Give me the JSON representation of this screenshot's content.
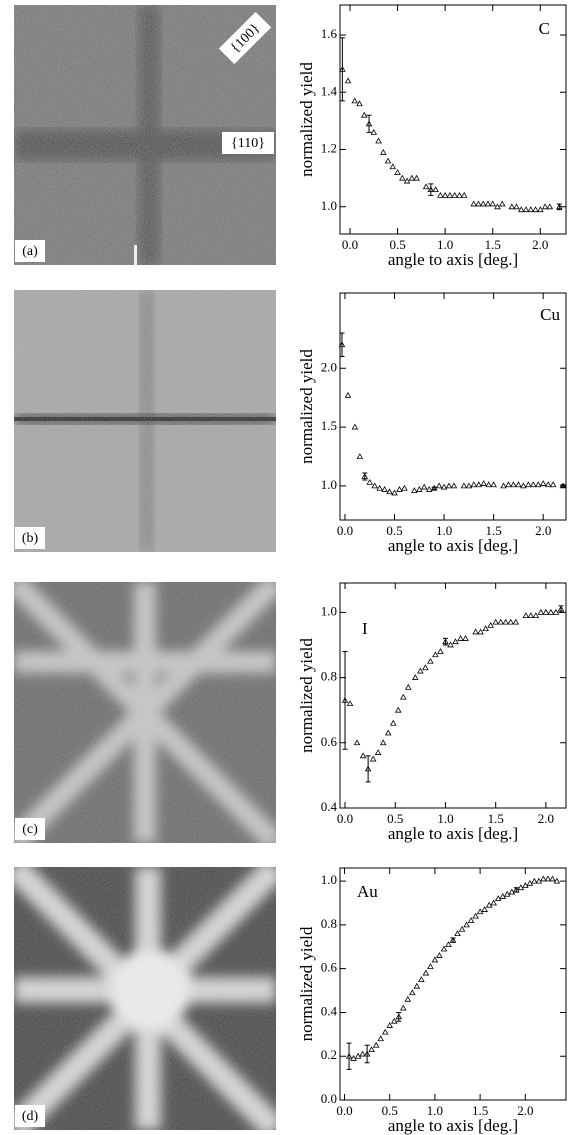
{
  "images": [
    {
      "label": "(a)",
      "annotations": [
        "{100}",
        "{110}"
      ]
    },
    {
      "label": "(b)"
    },
    {
      "label": "(c)"
    },
    {
      "label": "(d)"
    }
  ],
  "chart_data": [
    {
      "type": "scatter",
      "annotation": "C",
      "xlabel": "angle to axis [deg.]",
      "ylabel": "normalized yield",
      "x": [
        -0.08,
        -0.02,
        0.05,
        0.1,
        0.15,
        0.2,
        0.25,
        0.3,
        0.35,
        0.4,
        0.45,
        0.5,
        0.55,
        0.6,
        0.65,
        0.7,
        0.8,
        0.85,
        0.9,
        0.95,
        1.0,
        1.05,
        1.1,
        1.15,
        1.2,
        1.3,
        1.35,
        1.4,
        1.45,
        1.5,
        1.55,
        1.6,
        1.7,
        1.75,
        1.8,
        1.85,
        1.9,
        1.95,
        2.0,
        2.05,
        2.1,
        2.2
      ],
      "values": [
        1.48,
        1.44,
        1.37,
        1.36,
        1.32,
        1.29,
        1.26,
        1.23,
        1.19,
        1.16,
        1.14,
        1.12,
        1.1,
        1.09,
        1.1,
        1.1,
        1.07,
        1.06,
        1.06,
        1.04,
        1.04,
        1.04,
        1.04,
        1.04,
        1.04,
        1.01,
        1.01,
        1.01,
        1.01,
        1.01,
        1.0,
        1.01,
        1.0,
        1.0,
        0.99,
        0.99,
        0.99,
        0.99,
        0.99,
        1.0,
        1.0,
        1.0
      ],
      "errorbars": {
        "x": [
          -0.08,
          0.2,
          0.85,
          2.2
        ],
        "values": [
          1.48,
          1.29,
          1.06,
          1.0
        ],
        "errors": [
          0.11,
          0.03,
          0.02,
          0.01
        ]
      },
      "xlim": [
        -0.105,
        2.27
      ],
      "xticks": [
        {
          "value": 0,
          "label": "0.0"
        },
        0.5,
        {
          "value": 1,
          "label": "1.0"
        },
        1.5,
        {
          "value": 2,
          "label": "2.0"
        }
      ],
      "ylim": [
        0.905,
        1.705
      ],
      "yticks": [
        {
          "value": 1,
          "label": "1.0"
        },
        1.2,
        1.4,
        1.6
      ],
      "color": "#000000"
    },
    {
      "type": "scatter",
      "annotation": "Cu",
      "xlabel": "angle to axis [deg.]",
      "ylabel": "normalized yield",
      "x": [
        -0.03,
        0.03,
        0.1,
        0.15,
        0.2,
        0.25,
        0.3,
        0.35,
        0.4,
        0.45,
        0.5,
        0.55,
        0.6,
        0.7,
        0.75,
        0.8,
        0.85,
        0.9,
        0.95,
        1.0,
        1.05,
        1.1,
        1.2,
        1.25,
        1.3,
        1.35,
        1.4,
        1.45,
        1.5,
        1.6,
        1.65,
        1.7,
        1.75,
        1.8,
        1.85,
        1.9,
        1.95,
        2.0,
        2.05,
        2.1,
        2.2
      ],
      "values": [
        2.2,
        1.77,
        1.5,
        1.25,
        1.08,
        1.03,
        1.0,
        0.98,
        0.97,
        0.95,
        0.94,
        0.97,
        0.98,
        0.96,
        0.97,
        0.99,
        0.97,
        0.98,
        1.0,
        0.99,
        1.0,
        1.0,
        1.0,
        1.0,
        1.01,
        1.01,
        1.02,
        1.01,
        1.01,
        1.0,
        1.01,
        1.01,
        1.01,
        1.0,
        1.01,
        1.01,
        1.01,
        1.02,
        1.01,
        1.01,
        1.0
      ],
      "errorbars": {
        "x": [
          -0.03,
          0.2,
          0.9,
          2.2
        ],
        "values": [
          2.2,
          1.08,
          0.98,
          1.0
        ],
        "errors": [
          0.1,
          0.03,
          0.01,
          0.01
        ]
      },
      "xlim": [
        -0.05,
        2.23
      ],
      "xticks": [
        {
          "value": 0,
          "label": "0.0"
        },
        0.5,
        {
          "value": 1,
          "label": "1.0"
        },
        1.5,
        {
          "value": 2,
          "label": "2.0"
        }
      ],
      "ylim": [
        0.71,
        2.64
      ],
      "yticks": [
        {
          "value": 1,
          "label": "1.0"
        },
        1.5,
        {
          "value": 2,
          "label": "2.0"
        }
      ],
      "color": "#000000"
    },
    {
      "type": "scatter",
      "annotation": "I",
      "xlabel": "angle to axis [deg.]",
      "ylabel": "normalized yield",
      "x": [
        0.0,
        0.05,
        0.12,
        0.18,
        0.23,
        0.28,
        0.33,
        0.38,
        0.43,
        0.48,
        0.53,
        0.58,
        0.63,
        0.7,
        0.75,
        0.8,
        0.85,
        0.9,
        0.95,
        1.0,
        1.05,
        1.1,
        1.15,
        1.2,
        1.3,
        1.35,
        1.4,
        1.45,
        1.5,
        1.55,
        1.6,
        1.65,
        1.7,
        1.8,
        1.85,
        1.9,
        1.95,
        2.0,
        2.05,
        2.1,
        2.15
      ],
      "values": [
        0.73,
        0.72,
        0.6,
        0.56,
        0.52,
        0.55,
        0.57,
        0.6,
        0.63,
        0.66,
        0.7,
        0.74,
        0.77,
        0.8,
        0.82,
        0.83,
        0.85,
        0.87,
        0.88,
        0.91,
        0.9,
        0.91,
        0.92,
        0.92,
        0.94,
        0.94,
        0.95,
        0.96,
        0.97,
        0.97,
        0.97,
        0.97,
        0.97,
        0.99,
        0.99,
        0.99,
        1.0,
        1.0,
        1.0,
        1.0,
        1.01
      ],
      "errorbars": {
        "x": [
          0.0,
          0.23,
          1.0,
          2.15
        ],
        "values": [
          0.73,
          0.52,
          0.91,
          1.01
        ],
        "errors": [
          0.15,
          0.04,
          0.01,
          0.01
        ]
      },
      "xlim": [
        -0.05,
        2.2
      ],
      "xticks": [
        {
          "value": 0,
          "label": "0.0"
        },
        0.5,
        {
          "value": 1,
          "label": "1.0"
        },
        1.5,
        {
          "value": 2,
          "label": "2.0"
        }
      ],
      "ylim": [
        0.4,
        1.09
      ],
      "yticks": [
        0.4,
        0.6,
        0.8,
        {
          "value": 1,
          "label": "1.0"
        }
      ],
      "color": "#000000"
    },
    {
      "type": "scatter",
      "annotation": "Au",
      "xlabel": "angle to axis [deg.]",
      "ylabel": "normalized yield",
      "x": [
        0.05,
        0.1,
        0.15,
        0.2,
        0.25,
        0.3,
        0.35,
        0.4,
        0.45,
        0.5,
        0.55,
        0.6,
        0.65,
        0.7,
        0.75,
        0.8,
        0.85,
        0.9,
        0.95,
        1.0,
        1.05,
        1.1,
        1.15,
        1.2,
        1.25,
        1.3,
        1.35,
        1.4,
        1.45,
        1.5,
        1.55,
        1.6,
        1.65,
        1.7,
        1.75,
        1.8,
        1.85,
        1.9,
        1.95,
        2.0,
        2.05,
        2.1,
        2.15,
        2.2,
        2.25,
        2.3,
        2.35
      ],
      "values": [
        0.2,
        0.19,
        0.2,
        0.21,
        0.21,
        0.23,
        0.25,
        0.28,
        0.31,
        0.34,
        0.36,
        0.38,
        0.42,
        0.46,
        0.49,
        0.52,
        0.55,
        0.58,
        0.61,
        0.64,
        0.66,
        0.69,
        0.71,
        0.73,
        0.76,
        0.78,
        0.8,
        0.82,
        0.84,
        0.86,
        0.87,
        0.89,
        0.9,
        0.92,
        0.93,
        0.94,
        0.95,
        0.96,
        0.97,
        0.98,
        0.99,
        1.0,
        1.0,
        1.01,
        1.01,
        1.01,
        1.0
      ],
      "errorbars": {
        "x": [
          0.05,
          0.25,
          0.6,
          1.2,
          1.9
        ],
        "values": [
          0.2,
          0.21,
          0.38,
          0.73,
          0.96
        ],
        "errors": [
          0.06,
          0.04,
          0.02,
          0.01,
          0.01
        ]
      },
      "xlim": [
        -0.05,
        2.45
      ],
      "xticks": [
        {
          "value": 0,
          "label": "0.0"
        },
        0.5,
        {
          "value": 1,
          "label": "1.0"
        },
        1.5,
        {
          "value": 2,
          "label": "2.0"
        }
      ],
      "ylim": [
        0,
        1.06
      ],
      "yticks": [
        {
          "value": 0,
          "label": "0.0"
        },
        0.2,
        0.4,
        0.6,
        0.8,
        {
          "value": 1,
          "label": "1.0"
        }
      ],
      "color": "#000000"
    }
  ]
}
